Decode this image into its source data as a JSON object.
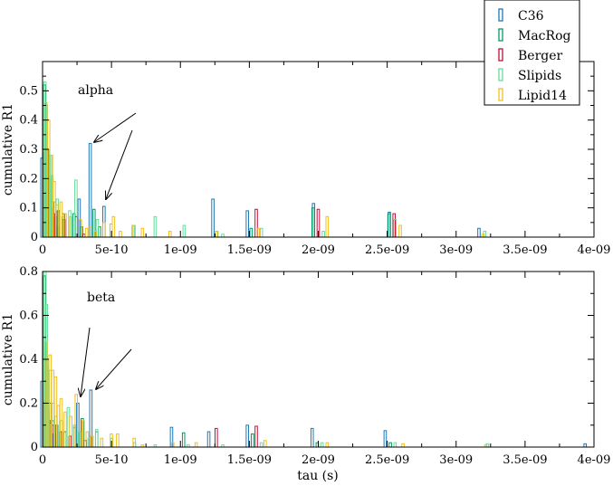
{
  "chart_data": [
    {
      "type": "bar",
      "annotation": "alpha",
      "xlabel": "",
      "ylabel": "cumulative R1",
      "xlim": [
        0,
        4e-09
      ],
      "ylim": [
        0,
        0.6
      ],
      "xticks": [
        0,
        5e-10,
        1e-09,
        1.5e-09,
        2e-09,
        2.5e-09,
        3e-09,
        3.5e-09,
        4e-09
      ],
      "xtick_labels": [
        "0",
        "5e-10",
        "1e-09",
        "1.5e-09",
        "2e-09",
        "2.5e-09",
        "3e-09",
        "3.5e-09",
        "4e-09"
      ],
      "yticks": [
        0,
        0.1,
        0.2,
        0.3,
        0.4,
        0.5
      ],
      "ytick_labels": [
        "0",
        "0.1",
        "0.2",
        "0.3",
        "0.4",
        "0.5"
      ],
      "series": [
        {
          "name": "C36",
          "color": "#1f77b4",
          "x": [
            1e-11,
            3e-11,
            5e-11,
            7e-11,
            9e-11,
            1.1e-10,
            1.3e-10,
            2.8e-10,
            3.6e-10,
            4.6e-10,
            1.25e-09,
            1.5e-09,
            1.98e-09,
            2.53e-09,
            3.18e-09
          ],
          "values": [
            0.27,
            0.15,
            0.08,
            0.2,
            0.07,
            0.04,
            0.03,
            0.13,
            0.32,
            0.105,
            0.13,
            0.09,
            0.115,
            0.085,
            0.03
          ]
        },
        {
          "name": "MacRog",
          "color": "#009966",
          "x": [
            2e-11,
            4e-11,
            6e-11,
            8e-11,
            1.05e-10,
            1.6e-10,
            2.35e-10,
            2.9e-10,
            3.8e-10,
            4.2e-10,
            1.27e-09,
            1.52e-09,
            1.97e-09,
            2.52e-09
          ],
          "values": [
            0.52,
            0.3,
            0.2,
            0.12,
            0.07,
            0.08,
            0.08,
            0.035,
            0.095,
            0.035,
            0.02,
            0.03,
            0.1,
            0.08
          ]
        },
        {
          "name": "Berger",
          "color": "#c0103a",
          "x": [
            2e-11,
            4e-11,
            6e-11,
            8e-11,
            1.15e-10,
            1.55e-10,
            2.45e-10,
            3e-10,
            1.55e-09,
            2e-09,
            2.55e-09
          ],
          "values": [
            0.29,
            0.15,
            0.1,
            0.08,
            0.09,
            0.06,
            0.07,
            0.01,
            0.095,
            0.095,
            0.08
          ]
        },
        {
          "name": "Slipids",
          "color": "#66dd99",
          "x": [
            1e-11,
            2e-11,
            3e-11,
            5e-11,
            6e-11,
            8e-11,
            1e-10,
            1.4e-10,
            1.9e-10,
            2.35e-10,
            3.9e-10,
            4.9e-10,
            6.5e-10,
            8.1e-10,
            1.02e-09,
            1.3e-09,
            1.58e-09,
            2.03e-09,
            2.55e-09,
            3.2e-09
          ],
          "values": [
            0.53,
            0.45,
            0.3,
            0.28,
            0.21,
            0.12,
            0.13,
            0.07,
            0.09,
            0.195,
            0.06,
            0.045,
            0.04,
            0.07,
            0.04,
            0.01,
            0.03,
            0.02,
            0.06,
            0.02
          ]
        },
        {
          "name": "Lipid14",
          "color": "#f0c020",
          "x": [
            1e-11,
            3e-11,
            5e-11,
            7e-11,
            9e-11,
            1.2e-10,
            1.5e-10,
            1.9e-10,
            2.6e-10,
            3.05e-10,
            3.35e-10,
            3.7e-10,
            4.3e-10,
            5e-10,
            5.5e-10,
            6.5e-10,
            7.1e-10,
            9.1e-10,
            1.25e-09,
            1.55e-09,
            2.05e-09,
            2.58e-09,
            3.18e-09
          ],
          "values": [
            0.46,
            0.4,
            0.28,
            0.19,
            0.11,
            0.12,
            0.08,
            0.07,
            0.06,
            0.03,
            0.035,
            0.02,
            0.05,
            0.07,
            0.02,
            0.04,
            0.03,
            0.02,
            0.02,
            0.03,
            0.07,
            0.04,
            0.01
          ]
        }
      ]
    },
    {
      "type": "bar",
      "annotation": "beta",
      "xlabel": "tau (s)",
      "ylabel": "cumulative R1",
      "xlim": [
        0,
        4e-09
      ],
      "ylim": [
        0,
        0.8
      ],
      "xticks": [
        0,
        5e-10,
        1e-09,
        1.5e-09,
        2e-09,
        2.5e-09,
        3e-09,
        3.5e-09,
        4e-09
      ],
      "xtick_labels": [
        "0",
        "5e-10",
        "1e-09",
        "1.5e-09",
        "2e-09",
        "2.5e-09",
        "3e-09",
        "3.5e-09",
        "4e-09"
      ],
      "yticks": [
        0,
        0.2,
        0.4,
        0.6,
        0.8
      ],
      "ytick_labels": [
        "0",
        "0.2",
        "0.4",
        "0.6",
        "0.8"
      ],
      "series": [
        {
          "name": "C36",
          "color": "#1f77b4",
          "x": [
            1e-11,
            3e-11,
            5e-11,
            7e-11,
            1e-10,
            2.7e-10,
            3.65e-10,
            9.5e-10,
            1.22e-09,
            1.5e-09,
            1.97e-09,
            2.5e-09,
            3.95e-09
          ],
          "values": [
            0.3,
            0.2,
            0.14,
            0.11,
            0.06,
            0.2,
            0.26,
            0.09,
            0.07,
            0.1,
            0.085,
            0.075,
            0.015
          ]
        },
        {
          "name": "MacRog",
          "color": "#009966",
          "x": [
            2e-11,
            4e-11,
            6e-11,
            8e-11,
            1.1e-10,
            1.7e-10,
            2.4e-10,
            2.95e-10,
            4e-10,
            1.03e-09,
            1.53e-09,
            2e-09,
            2.53e-09
          ],
          "values": [
            0.78,
            0.36,
            0.2,
            0.12,
            0.1,
            0.07,
            0.09,
            0.13,
            0.07,
            0.065,
            0.06,
            0.02,
            0.02
          ]
        },
        {
          "name": "Berger",
          "color": "#c0103a",
          "x": [
            2e-11,
            4e-11,
            6e-11,
            8e-11,
            1.3e-10,
            2e-10,
            3.1e-10,
            1.26e-09,
            1.55e-09
          ],
          "values": [
            0.21,
            0.17,
            0.12,
            0.1,
            0.07,
            0.05,
            0.03,
            0.085,
            0.095
          ]
        },
        {
          "name": "Slipids",
          "color": "#66dd99",
          "x": [
            1e-11,
            2e-11,
            3e-11,
            5e-11,
            7e-11,
            9e-11,
            1.3e-10,
            1.8e-10,
            2.25e-10,
            2.6e-10,
            3.3e-10,
            3.85e-10,
            4.95e-10,
            6.6e-10,
            8.1e-10,
            1.05e-09,
            1.3e-09,
            1.58e-09,
            2.02e-09,
            2.55e-09,
            3.22e-09
          ],
          "values": [
            0.8,
            0.65,
            0.4,
            0.35,
            0.2,
            0.14,
            0.12,
            0.18,
            0.1,
            0.07,
            0.04,
            0.08,
            0.04,
            0.02,
            0.01,
            0.01,
            0.01,
            0.02,
            0.02,
            0.02,
            0.015
          ]
        },
        {
          "name": "Lipid14",
          "color": "#f0c020",
          "x": [
            1e-11,
            2e-11,
            4e-11,
            6e-11,
            8e-11,
            1e-10,
            1.2e-10,
            1.5e-10,
            1.9e-10,
            2.3e-10,
            2.8e-10,
            3.1e-10,
            3.45e-10,
            4.15e-10,
            4.85e-10,
            5.3e-10,
            6.5e-10,
            7.1e-10,
            9.3e-10,
            1.1e-09,
            1.6e-09,
            2.05e-09,
            2.6e-09,
            3.2e-09
          ],
          "values": [
            0.48,
            0.4,
            0.42,
            0.35,
            0.32,
            0.19,
            0.22,
            0.16,
            0.14,
            0.24,
            0.12,
            0.07,
            0.05,
            0.04,
            0.06,
            0.06,
            0.04,
            0.01,
            0.02,
            0.02,
            0.03,
            0.02,
            0.015,
            0.01
          ]
        }
      ]
    }
  ],
  "legend": [
    {
      "name": "C36",
      "color": "#1f77b4"
    },
    {
      "name": "MacRog",
      "color": "#009966"
    },
    {
      "name": "Berger",
      "color": "#c0103a"
    },
    {
      "name": "Slipids",
      "color": "#66dd99"
    },
    {
      "name": "Lipid14",
      "color": "#f0c020"
    }
  ],
  "legend_position": "top-right",
  "grid": false
}
